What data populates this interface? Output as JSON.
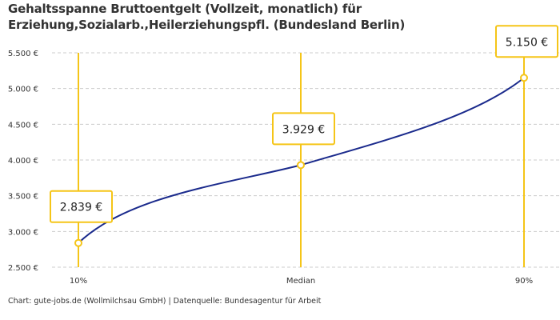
{
  "chart_data": {
    "type": "line",
    "title": "Gehaltsspanne Bruttoentgelt (Vollzeit, monatlich) für Erziehung,Sozialarb.,Heilerziehungspfl. (Bundesland Berlin)",
    "categories": [
      "10%",
      "Median",
      "90%"
    ],
    "values": [
      2839,
      3929,
      5150
    ],
    "data_labels": [
      "2.839 €",
      "3.929 €",
      "5.150 €"
    ],
    "yticks": [
      2500,
      3000,
      3500,
      4000,
      4500,
      5000,
      5500
    ],
    "ytick_labels": [
      "2.500 €",
      "3.000 €",
      "3.500 €",
      "4.000 €",
      "4.500 €",
      "5.000 €",
      "5.500 €"
    ],
    "ylim": [
      2500,
      5500
    ],
    "grid": "horizontal dashed",
    "xlabel": "",
    "ylabel": "",
    "colors": {
      "line": "#1a2a8c",
      "accent": "#f5c518",
      "grid": "#cccccc"
    }
  },
  "footer": "Chart: gute-jobs.de (Wollmilchsau GmbH) | Datenquelle: Bundesagentur für Arbeit"
}
